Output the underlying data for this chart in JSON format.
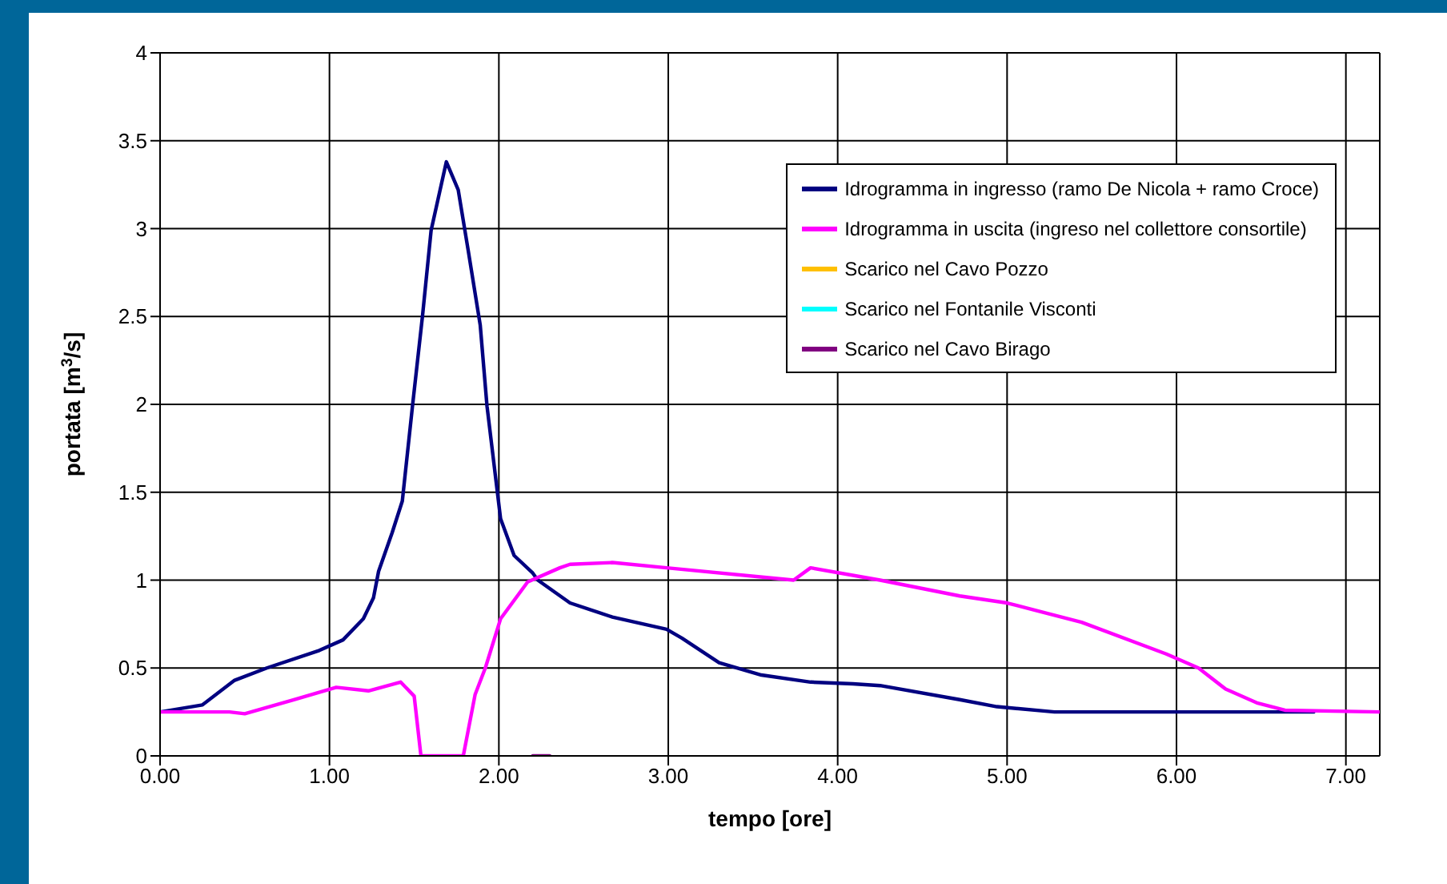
{
  "chart_data": {
    "type": "line",
    "xlabel": "tempo [ore]",
    "ylabel": "portata [m$^{3}$/s]",
    "xlim": [
      0,
      7.2
    ],
    "xticks": [
      {
        "value": 0,
        "label": "0.00"
      },
      {
        "value": 1,
        "label": "1.00"
      },
      {
        "value": 2,
        "label": "2.00"
      },
      {
        "value": 3,
        "label": "3.00"
      },
      {
        "value": 4,
        "label": "4.00"
      },
      {
        "value": 5,
        "label": "5.00"
      },
      {
        "value": 6,
        "label": "6.00"
      },
      {
        "value": 7,
        "label": "7.00"
      }
    ],
    "ylim": [
      0,
      4
    ],
    "yticks": [
      0,
      0.5,
      1,
      1.5,
      2,
      2.5,
      3,
      3.5,
      4
    ],
    "grid": true,
    "legend": "top right",
    "series": [
      {
        "name": "Idrogramma in ingresso (ramo De Nicola + ramo Croce)",
        "color": "#000080",
        "x": [
          0,
          0.25,
          0.44,
          0.63,
          0.94,
          1.08,
          1.2,
          1.26,
          1.29,
          1.37,
          1.43,
          1.49,
          1.55,
          1.6,
          1.69,
          1.76,
          1.82,
          1.89,
          1.93,
          2.01,
          2.09,
          2.2,
          2.23,
          2.42,
          2.67,
          2.99,
          3.08,
          3.3,
          3.55,
          3.84,
          4.09,
          4.25,
          4.72,
          4.94,
          5.28,
          6.81
        ],
        "values": [
          0.25,
          0.29,
          0.43,
          0.5,
          0.6,
          0.66,
          0.78,
          0.9,
          1.05,
          1.27,
          1.45,
          1.99,
          2.51,
          2.99,
          3.38,
          3.22,
          2.87,
          2.45,
          1.99,
          1.35,
          1.14,
          1.04,
          1.0,
          0.87,
          0.79,
          0.72,
          0.67,
          0.53,
          0.46,
          0.42,
          0.41,
          0.4,
          0.32,
          0.28,
          0.25,
          0.25
        ]
      },
      {
        "name": "Idrogramma in uscita (ingreso nel collettore consortile)",
        "color": "#ff00ff",
        "x": [
          0,
          0.41,
          0.5,
          0.79,
          1.04,
          1.23,
          1.42,
          1.5,
          1.54,
          1.79,
          1.86,
          1.92,
          2.01,
          2.17,
          2.36,
          2.42,
          2.67,
          2.99,
          3.74,
          3.84,
          4.25,
          4.72,
          5.0,
          5.44,
          5.94,
          6.13,
          6.29,
          6.48,
          6.64,
          7.2
        ],
        "values": [
          0.25,
          0.25,
          0.24,
          0.32,
          0.39,
          0.37,
          0.42,
          0.34,
          0,
          0,
          0.35,
          0.5,
          0.78,
          0.99,
          1.07,
          1.09,
          1.1,
          1.07,
          1.0,
          1.07,
          1.0,
          0.91,
          0.87,
          0.76,
          0.58,
          0.5,
          0.38,
          0.3,
          0.26,
          0.25
        ]
      },
      {
        "name": "Scarico nel Cavo Pozzo",
        "color": "#ffc000"
      },
      {
        "name": "Scarico nel Fontanile Visconti",
        "color": "#00ffff"
      },
      {
        "name": "Scarico nel Cavo Birago",
        "color": "#800080",
        "x": [
          2.2,
          2.3
        ],
        "values": [
          0,
          0
        ]
      }
    ]
  }
}
